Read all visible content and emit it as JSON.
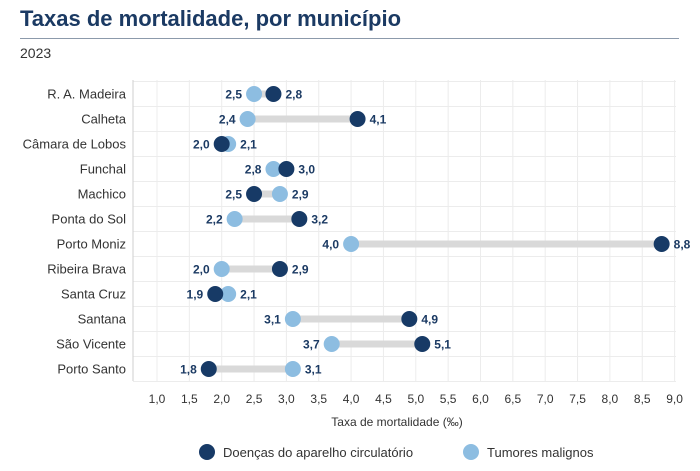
{
  "header": {
    "title": "Taxas de mortalidade, por município",
    "subtitle": "2023"
  },
  "colors": {
    "series1": "#173a66",
    "series2": "#8dbde1",
    "connector": "#d9d9d9",
    "label": "#1b3a63"
  },
  "chart_data": {
    "type": "scatter",
    "subtype": "dumbbell",
    "title": "Taxas de mortalidade, por município",
    "subtitle": "2023",
    "xlabel": "Taxa de mortalidade (‰)",
    "ylabel": "",
    "xlim": [
      0.7,
      9.0
    ],
    "x_ticks": [
      "1,0",
      "1,5",
      "2,0",
      "2,5",
      "3,0",
      "3,5",
      "4,0",
      "4,5",
      "5,0",
      "5,5",
      "6,0",
      "6,5",
      "7,0",
      "7,5",
      "8,0",
      "8,5",
      "9,0"
    ],
    "x_tick_values": [
      1.0,
      1.5,
      2.0,
      2.5,
      3.0,
      3.5,
      4.0,
      4.5,
      5.0,
      5.5,
      6.0,
      6.5,
      7.0,
      7.5,
      8.0,
      8.5,
      9.0
    ],
    "grid": true,
    "legend_position": "bottom",
    "categories": [
      "R. A. Madeira",
      "Calheta",
      "Câmara de Lobos",
      "Funchal",
      "Machico",
      "Ponta do Sol",
      "Porto Moniz",
      "Ribeira Brava",
      "Santa Cruz",
      "Santana",
      "São Vicente",
      "Porto Santo"
    ],
    "series": [
      {
        "name": "Doenças do aparelho circulatório",
        "values": [
          2.8,
          4.1,
          2.0,
          3.0,
          2.5,
          3.2,
          8.8,
          2.9,
          1.9,
          4.9,
          5.1,
          1.8
        ],
        "labels": [
          "2,8",
          "4,1",
          "2,0",
          "3,0",
          "2,5",
          "3,2",
          "8,8",
          "2,9",
          "1,9",
          "4,9",
          "5,1",
          "1,8"
        ]
      },
      {
        "name": "Tumores malignos",
        "values": [
          2.5,
          2.4,
          2.1,
          2.8,
          2.9,
          2.2,
          4.0,
          2.0,
          2.1,
          3.1,
          3.7,
          3.1
        ],
        "labels": [
          "2,5",
          "2,4",
          "2,1",
          "2,8",
          "2,9",
          "2,2",
          "4,0",
          "2,0",
          "2,1",
          "3,1",
          "3,7",
          "3,1"
        ]
      }
    ]
  }
}
